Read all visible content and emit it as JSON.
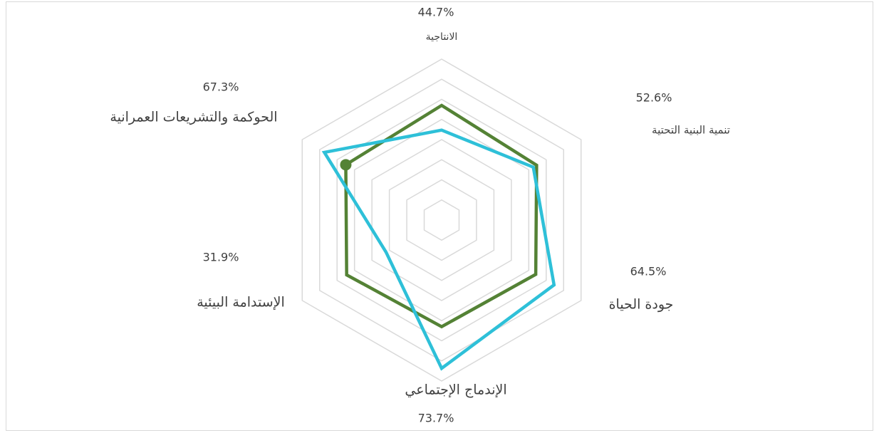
{
  "chart_data": {
    "type": "radar",
    "categories": [
      "الانتاجية",
      "تنمية البنية التحتية",
      "جودة الحياة",
      "الإندماج الإجتماعي",
      "الإستدامة البيئية",
      "الحوكمة والتشريعات العمرانية"
    ],
    "series": [
      {
        "color": "#548235",
        "values": [
          57,
          54.5,
          54,
          53,
          54.5,
          55
        ]
      },
      {
        "color": "#2ec0d8",
        "values": [
          44.7,
          52.6,
          64.5,
          73.7,
          31.9,
          67.3
        ],
        "value_labels": [
          "44.7%",
          "52.6%",
          "64.5%",
          "73.7%",
          "31.9%",
          "67.3%"
        ]
      }
    ],
    "rlim": [
      0,
      80
    ],
    "rticks": [
      10,
      20,
      30,
      40,
      50,
      60,
      70,
      80
    ],
    "grid": true
  }
}
